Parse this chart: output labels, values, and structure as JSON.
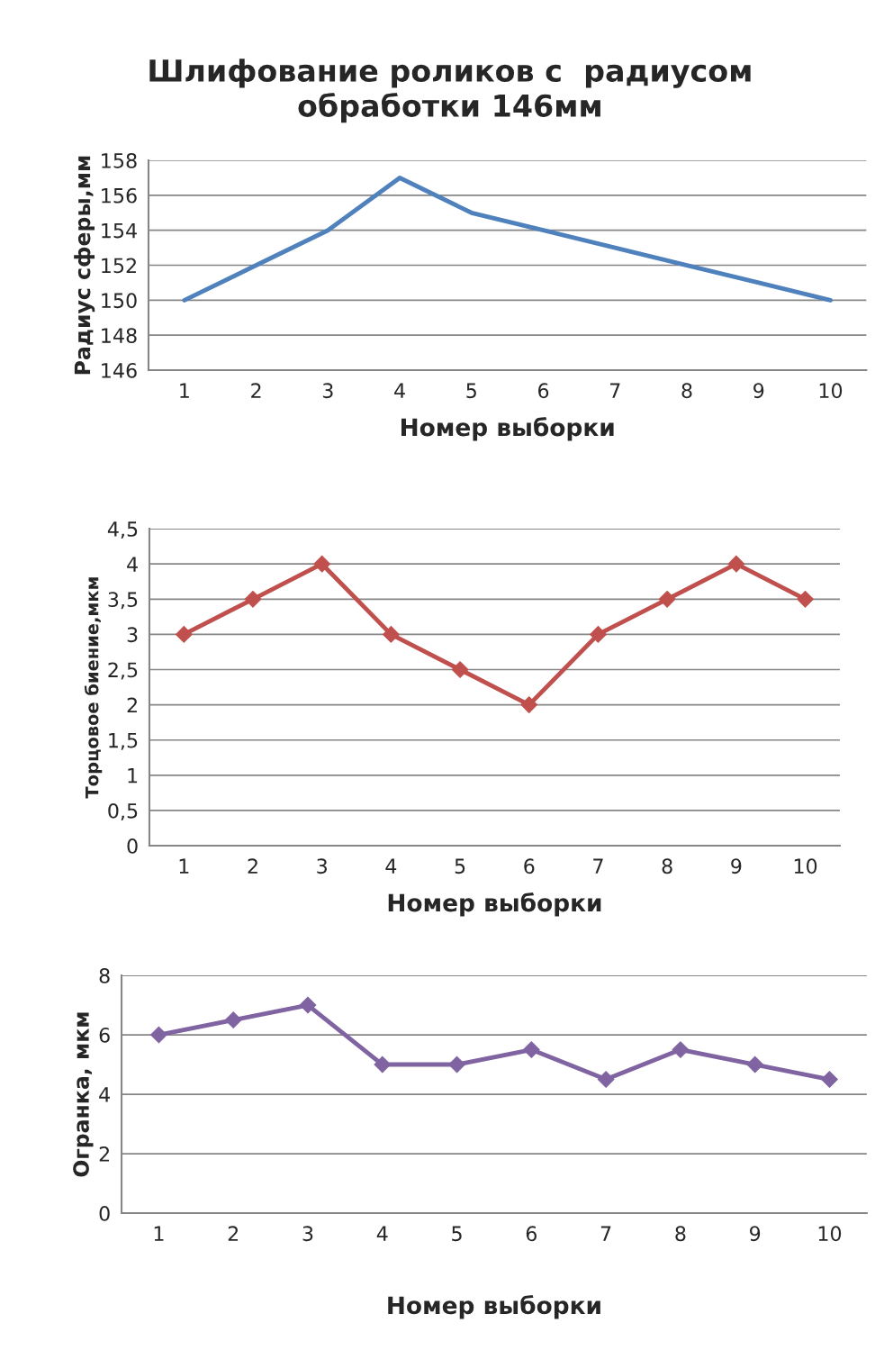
{
  "chart_data": [
    {
      "type": "line",
      "title": "Шлифование роликов с  радиусом\nобработки 146мм",
      "xlabel": "Номер выборки",
      "ylabel": "Радиус сферы,мм",
      "categories": [
        "1",
        "2",
        "3",
        "4",
        "5",
        "6",
        "7",
        "8",
        "9",
        "10"
      ],
      "series": [
        {
          "color": "#4f81bd",
          "values": [
            150,
            152,
            154,
            157,
            155,
            154,
            153,
            152,
            151,
            150
          ]
        }
      ],
      "ylim": [
        146,
        158
      ],
      "yticks": [
        146,
        148,
        150,
        152,
        154,
        156,
        158
      ],
      "grid": "y"
    },
    {
      "type": "line",
      "xlabel": "Номер выборки",
      "ylabel": "Торцовое биение,мкм",
      "categories": [
        "1",
        "2",
        "3",
        "4",
        "5",
        "6",
        "7",
        "8",
        "9",
        "10"
      ],
      "series": [
        {
          "color": "#c0504d",
          "values": [
            3,
            3.5,
            4,
            3,
            2.5,
            2,
            3,
            3.5,
            4,
            3.5
          ]
        }
      ],
      "ylim": [
        0,
        4.5
      ],
      "yticks": [
        0,
        {
          "value": 0.5,
          "label": "0,5"
        },
        1,
        {
          "value": 1.5,
          "label": "1,5"
        },
        2,
        {
          "value": 2.5,
          "label": "2,5"
        },
        3,
        {
          "value": 3.5,
          "label": "3,5"
        },
        4,
        {
          "value": 4.5,
          "label": "4,5"
        }
      ],
      "grid": "y",
      "marker": "diamond"
    },
    {
      "type": "line",
      "xlabel": "Номер выборки",
      "ylabel": "Огранка, мкм",
      "categories": [
        "1",
        "2",
        "3",
        "4",
        "5",
        "6",
        "7",
        "8",
        "9",
        "10"
      ],
      "series": [
        {
          "color": "#8064a2",
          "values": [
            6,
            6.5,
            7,
            5,
            5,
            5.5,
            4.5,
            5.5,
            5,
            4.5
          ]
        }
      ],
      "ylim": [
        0,
        8
      ],
      "yticks": [
        0,
        2,
        4,
        6,
        8
      ],
      "grid": "y",
      "marker": "diamond"
    }
  ]
}
